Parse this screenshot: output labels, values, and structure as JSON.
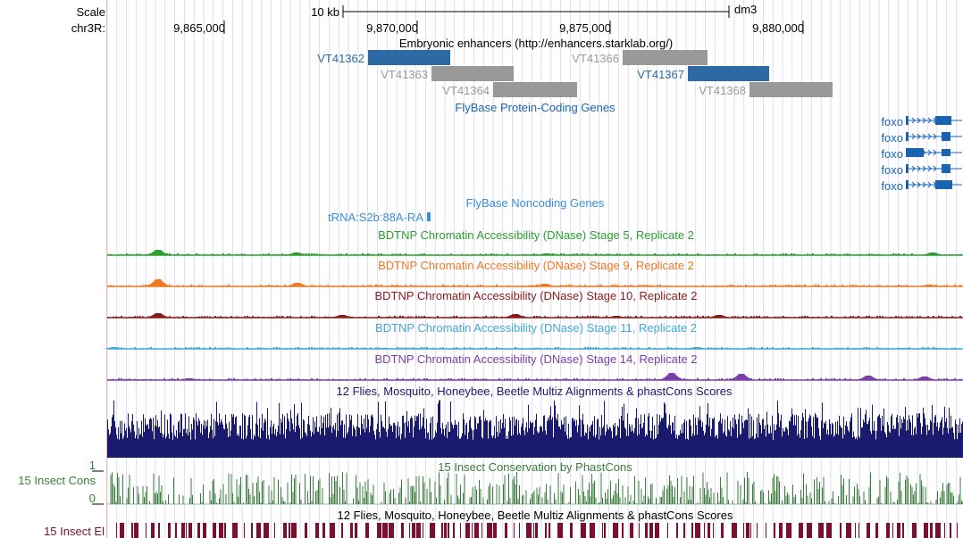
{
  "scale": {
    "label": "Scale",
    "bar_label": "10 kb",
    "assembly": "dm3"
  },
  "ruler": {
    "chrom_label": "chr3R:",
    "ticks": [
      "9,865,000",
      "9,870,000",
      "9,875,000",
      "9,880,000"
    ]
  },
  "tracks": {
    "enhancers": {
      "title": "Embryonic enhancers (http://enhancers.starklab.org/)",
      "items": [
        {
          "name": "VT41362",
          "highlighted": true
        },
        {
          "name": "VT41363",
          "highlighted": false
        },
        {
          "name": "VT41364",
          "highlighted": false
        },
        {
          "name": "VT41366",
          "highlighted": false
        },
        {
          "name": "VT41367",
          "highlighted": true
        },
        {
          "name": "VT41368",
          "highlighted": false
        }
      ]
    },
    "flybase_coding": {
      "title": "FlyBase Protein-Coding Genes",
      "genes": [
        "foxo",
        "foxo",
        "foxo",
        "foxo",
        "foxo"
      ]
    },
    "flybase_noncoding": {
      "title": "FlyBase Noncoding Genes",
      "gene": "tRNA:S2b:88A-RA"
    },
    "dnase": [
      {
        "title": "BDTNP Chromatin Accessibility (DNase) Stage 5, Replicate 2",
        "color": "#2ca02c"
      },
      {
        "title": "BDTNP Chromatin Accessibility (DNase) Stage 9, Replicate 2",
        "color": "#f07820"
      },
      {
        "title": "BDTNP Chromatin Accessibility (DNase) Stage 10, Replicate 2",
        "color": "#8b1a1a"
      },
      {
        "title": "BDTNP Chromatin Accessibility (DNase) Stage 11, Replicate 2",
        "color": "#3fa9d6"
      },
      {
        "title": "BDTNP Chromatin Accessibility (DNase) Stage 14, Replicate 2",
        "color": "#7b3fa8"
      }
    ],
    "multiz": {
      "title": "12 Flies, Mosquito, Honeybee, Beetle Multiz Alignments & phastCons Scores",
      "color": "#1a1a6e"
    },
    "cons": {
      "title": "15 Insect Conservation by PhastCons",
      "side_label": "15 Insect Cons",
      "ymax": "1",
      "ymin": "0",
      "color": "#3a7d3a"
    },
    "elements": {
      "title": "12 Flies, Mosquito, Honeybee, Beetle Multiz Alignments & phastCons Scores",
      "side_label": "15 Insect El",
      "color": "#7a1030"
    }
  },
  "colors": {
    "enhancer_highlight": "#2d6aa3",
    "enhancer_plain": "#999999",
    "gene_blue": "#1a63b0",
    "noncoding_blue": "#3a8fd6",
    "grid": "#c8c8f0"
  }
}
